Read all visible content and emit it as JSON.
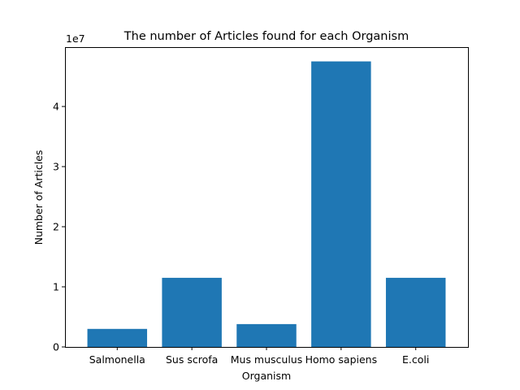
{
  "colors": {
    "bar": "#1f77b4",
    "axis": "#000000",
    "background": "#ffffff"
  },
  "chart_data": {
    "type": "bar",
    "title": "The number of Articles found for each Organism",
    "xlabel": "Organism",
    "ylabel": "Number of Articles",
    "y_offset_label": "1e7",
    "categories": [
      "Salmonella",
      "Sus scrofa",
      "Mus musculus",
      "Homo sapiens",
      "E.coli"
    ],
    "values": [
      3000000,
      11500000,
      3800000,
      47500000,
      11500000
    ],
    "ylim": [
      0,
      49875000
    ],
    "y_ticks": [
      0,
      10000000,
      20000000,
      30000000,
      40000000
    ],
    "y_tick_labels": [
      "0",
      "1",
      "2",
      "3",
      "4"
    ],
    "grid": false,
    "legend": "none"
  }
}
